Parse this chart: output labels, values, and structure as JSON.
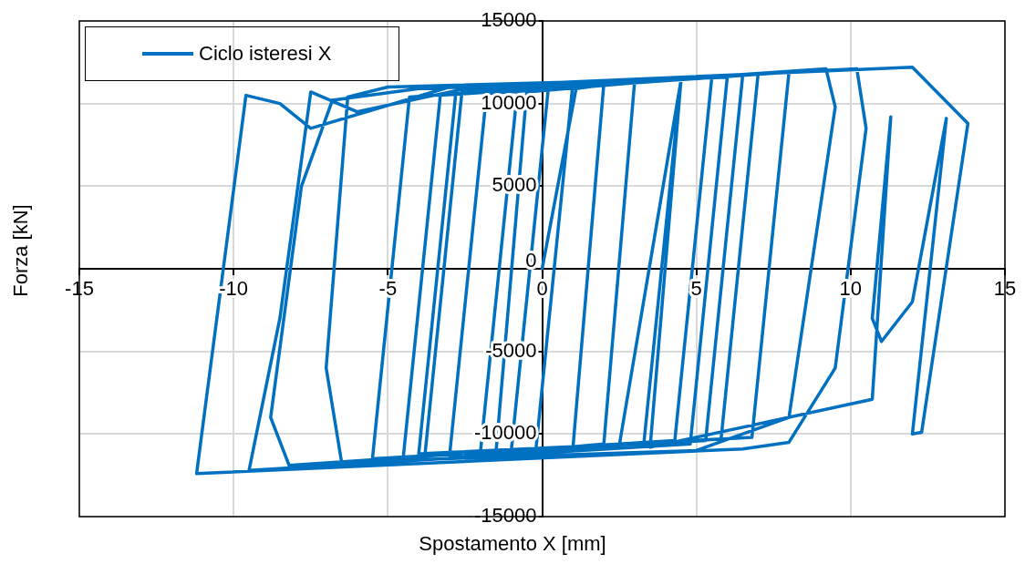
{
  "chart_data": {
    "type": "line",
    "xlabel": "Spostamento X [mm]",
    "ylabel": "Forza [kN]",
    "xlim": [
      -15,
      15
    ],
    "xticks": [
      -15,
      -10,
      -5,
      0,
      5,
      10,
      15
    ],
    "ylim": [
      -15000,
      15000
    ],
    "yticks": [
      -15000,
      -10000,
      -5000,
      0,
      5000,
      10000,
      15000
    ],
    "grid": true,
    "legend": "top left",
    "marker": "none",
    "line_style": "solid",
    "series": [
      {
        "name": "Ciclo isteresi X",
        "color": "#0070c0",
        "x": [
          0,
          1.1,
          3.0,
          2.0,
          -1.5,
          -0.5,
          4.5,
          3.3,
          -3.0,
          -1.8,
          5.5,
          4.3,
          -4.5,
          -3.3,
          7.0,
          5.8,
          -2.0,
          -0.8,
          8.0,
          6.8,
          -5.5,
          -4.3,
          9.2,
          9.5,
          8.0,
          5.0,
          -6.5,
          -7.0,
          -6.3,
          -5.0,
          1.0,
          -0.2,
          -8.2,
          -8.8,
          -7.8,
          -6.8,
          -4.0,
          6.0,
          4.8,
          -9.5,
          -8.5,
          -7.5,
          -6.0,
          -2.5,
          10.2,
          10.5,
          9.5,
          8.0,
          6.5,
          -11.2,
          -9.6,
          -8.5,
          -7.5,
          -3.0,
          12.0,
          13.8,
          12.3,
          12.0,
          13.1,
          12.0,
          11.0,
          10.7,
          11.3,
          10.7,
          3.5,
          4.5,
          2.5,
          0.5,
          -3.8,
          -2.6,
          2.0,
          1.0,
          -1.0,
          0.2,
          6.5,
          5.3,
          -4.0,
          -2.8,
          3.0
        ],
        "values": [
          0,
          10900,
          11400,
          -10600,
          -11200,
          10700,
          11500,
          -10500,
          -11300,
          10600,
          11600,
          -10400,
          -11400,
          10500,
          11800,
          -10300,
          -11100,
          10800,
          11900,
          -10200,
          -11500,
          10400,
          12100,
          9800,
          -9000,
          -11000,
          -11700,
          -6000,
          10400,
          11000,
          11300,
          -10900,
          -11900,
          -9000,
          5000,
          10200,
          10900,
          11600,
          -10600,
          -12200,
          -3000,
          10700,
          9500,
          10900,
          12100,
          8500,
          -6000,
          -10500,
          -10900,
          -12400,
          10500,
          10000,
          8500,
          11000,
          12200,
          8800,
          -9900,
          -10000,
          9100,
          -2000,
          -4400,
          -3000,
          9200,
          -7900,
          -10800,
          11400,
          -10700,
          -10900,
          -11300,
          10700,
          11200,
          -10800,
          -11000,
          10900,
          11700,
          -10400,
          -11200,
          10600,
          11300
        ]
      }
    ]
  }
}
